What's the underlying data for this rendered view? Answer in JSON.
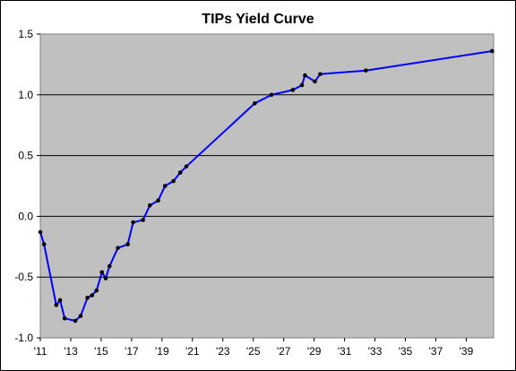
{
  "chart_data": {
    "type": "line",
    "title": "TIPs Yield Curve",
    "xlabel": "",
    "ylabel": "",
    "xlim": [
      2011.0,
      2040.8
    ],
    "ylim": [
      -1.0,
      1.5
    ],
    "x_tick_values": [
      2011,
      2013,
      2015,
      2017,
      2019,
      2021,
      2023,
      2025,
      2027,
      2029,
      2031,
      2033,
      2035,
      2037,
      2039
    ],
    "x_tick_labels": [
      "'11",
      "'13",
      "'15",
      "'17",
      "'19",
      "'21",
      "'23",
      "'25",
      "'27",
      "'29",
      "'31",
      "'33",
      "'35",
      "'37",
      "'39"
    ],
    "y_tick_values": [
      1.5,
      1.0,
      0.5,
      0.0,
      -0.5,
      -1.0
    ],
    "y_tick_labels": [
      "1.5",
      "1.0",
      "0.5",
      "0.0",
      "-0.5",
      "-1.0"
    ],
    "grid": "horizontal",
    "legend": "none",
    "colors": {
      "plot_background": "#c0c0c0",
      "line": "#0000ff",
      "marker": "#000000",
      "gridline": "#000000"
    },
    "series": [
      {
        "x": [
          2011.0,
          2011.25,
          2012.05,
          2012.3,
          2012.6,
          2013.3,
          2013.65,
          2014.1,
          2014.4,
          2014.7,
          2015.05,
          2015.3,
          2015.55,
          2016.1,
          2016.75,
          2017.1,
          2017.75,
          2018.2,
          2018.75,
          2019.2,
          2019.75,
          2020.2,
          2020.6,
          2025.1,
          2026.2,
          2027.6,
          2028.2,
          2028.4,
          2029.05,
          2029.4,
          2032.4,
          2040.7
        ],
        "y": [
          -0.13,
          -0.23,
          -0.73,
          -0.69,
          -0.84,
          -0.86,
          -0.82,
          -0.67,
          -0.65,
          -0.61,
          -0.46,
          -0.51,
          -0.41,
          -0.26,
          -0.23,
          -0.05,
          -0.03,
          0.09,
          0.13,
          0.25,
          0.29,
          0.36,
          0.41,
          0.93,
          1.0,
          1.04,
          1.08,
          1.16,
          1.11,
          1.17,
          1.2,
          1.36
        ]
      }
    ]
  }
}
